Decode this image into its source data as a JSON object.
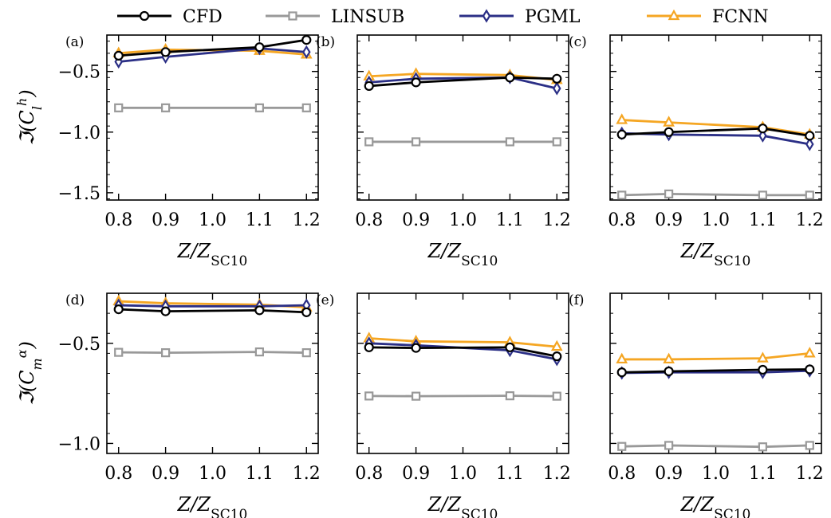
{
  "legend": [
    {
      "name": "CFD",
      "color": "#000000",
      "marker": "circle"
    },
    {
      "name": "LINSUB",
      "color": "#999999",
      "marker": "square"
    },
    {
      "name": "PGML",
      "color": "#2b2f86",
      "marker": "diamond"
    },
    {
      "name": "FCNN",
      "color": "#f5a623",
      "marker": "triangle"
    }
  ],
  "chart_data": [
    {
      "panel": "(a)",
      "type": "line",
      "x": [
        0.8,
        0.9,
        1.1,
        1.2
      ],
      "xlabel": "Z/Z_SC10",
      "ylabel": "ℑ(C_l^h)",
      "xticks": [
        "0.8",
        "0.9",
        "1.0",
        "1.1",
        "1.2"
      ],
      "yticks": [
        "-0.5",
        "-1.0",
        "-1.5"
      ],
      "ylim": [
        -1.56,
        -0.2
      ],
      "series": [
        {
          "name": "CFD",
          "values": [
            -0.37,
            -0.34,
            -0.3,
            -0.24
          ]
        },
        {
          "name": "LINSUB",
          "values": [
            -0.8,
            -0.8,
            -0.8,
            -0.8
          ]
        },
        {
          "name": "PGML",
          "values": [
            -0.42,
            -0.38,
            -0.31,
            -0.34
          ]
        },
        {
          "name": "FCNN",
          "values": [
            -0.35,
            -0.32,
            -0.33,
            -0.36
          ]
        }
      ]
    },
    {
      "panel": "(b)",
      "type": "line",
      "x": [
        0.8,
        0.9,
        1.1,
        1.2
      ],
      "xlabel": "Z/Z_SC10",
      "ylabel": "",
      "xticks": [
        "0.8",
        "0.9",
        "1.0",
        "1.1",
        "1.2"
      ],
      "yticks": [],
      "ylim": [
        -1.56,
        -0.2
      ],
      "series": [
        {
          "name": "CFD",
          "values": [
            -0.62,
            -0.59,
            -0.55,
            -0.56
          ]
        },
        {
          "name": "LINSUB",
          "values": [
            -1.08,
            -1.08,
            -1.08,
            -1.08
          ]
        },
        {
          "name": "PGML",
          "values": [
            -0.59,
            -0.56,
            -0.55,
            -0.64
          ]
        },
        {
          "name": "FCNN",
          "values": [
            -0.54,
            -0.52,
            -0.53,
            -0.57
          ]
        }
      ]
    },
    {
      "panel": "(c)",
      "type": "line",
      "x": [
        0.8,
        0.9,
        1.1,
        1.2
      ],
      "xlabel": "Z/Z_SC10",
      "ylabel": "",
      "xticks": [
        "0.8",
        "0.9",
        "1.0",
        "1.1",
        "1.2"
      ],
      "yticks": [],
      "ylim": [
        -1.56,
        -0.2
      ],
      "series": [
        {
          "name": "CFD",
          "values": [
            -1.02,
            -1.0,
            -0.97,
            -1.03
          ]
        },
        {
          "name": "LINSUB",
          "values": [
            -1.52,
            -1.51,
            -1.52,
            -1.52
          ]
        },
        {
          "name": "PGML",
          "values": [
            -1.01,
            -1.02,
            -1.03,
            -1.1
          ]
        },
        {
          "name": "FCNN",
          "values": [
            -0.9,
            -0.92,
            -0.96,
            -1.02
          ]
        }
      ]
    },
    {
      "panel": "(d)",
      "type": "line",
      "x": [
        0.8,
        0.9,
        1.1,
        1.2
      ],
      "xlabel": "Z/Z_SC10",
      "ylabel": "ℑ(C_m^α)",
      "xticks": [
        "0.8",
        "0.9",
        "1.0",
        "1.1",
        "1.2"
      ],
      "yticks": [
        "-0.5",
        "-1.0"
      ],
      "ylim": [
        -1.05,
        -0.25
      ],
      "series": [
        {
          "name": "CFD",
          "values": [
            -0.33,
            -0.34,
            -0.335,
            -0.345
          ]
        },
        {
          "name": "LINSUB",
          "values": [
            -0.545,
            -0.547,
            -0.543,
            -0.547
          ]
        },
        {
          "name": "PGML",
          "values": [
            -0.31,
            -0.315,
            -0.315,
            -0.31
          ]
        },
        {
          "name": "FCNN",
          "values": [
            -0.29,
            -0.3,
            -0.307,
            -0.32
          ]
        }
      ]
    },
    {
      "panel": "(e)",
      "type": "line",
      "x": [
        0.8,
        0.9,
        1.1,
        1.2
      ],
      "xlabel": "Z/Z_SC10",
      "ylabel": "",
      "xticks": [
        "0.8",
        "0.9",
        "1.0",
        "1.1",
        "1.2"
      ],
      "yticks": [],
      "ylim": [
        -1.05,
        -0.25
      ],
      "series": [
        {
          "name": "CFD",
          "values": [
            -0.52,
            -0.523,
            -0.52,
            -0.565
          ]
        },
        {
          "name": "LINSUB",
          "values": [
            -0.763,
            -0.764,
            -0.762,
            -0.764
          ]
        },
        {
          "name": "PGML",
          "values": [
            -0.5,
            -0.51,
            -0.535,
            -0.58
          ]
        },
        {
          "name": "FCNN",
          "values": [
            -0.475,
            -0.49,
            -0.495,
            -0.517
          ]
        }
      ]
    },
    {
      "panel": "(f)",
      "type": "line",
      "x": [
        0.8,
        0.9,
        1.1,
        1.2
      ],
      "xlabel": "Z/Z_SC10",
      "ylabel": "",
      "xticks": [
        "0.8",
        "0.9",
        "1.0",
        "1.1",
        "1.2"
      ],
      "yticks": [],
      "ylim": [
        -1.05,
        -0.25
      ],
      "series": [
        {
          "name": "CFD",
          "values": [
            -0.645,
            -0.64,
            -0.632,
            -0.63
          ]
        },
        {
          "name": "LINSUB",
          "values": [
            -1.015,
            -1.01,
            -1.017,
            -1.01
          ]
        },
        {
          "name": "PGML",
          "values": [
            -0.648,
            -0.645,
            -0.645,
            -0.637
          ]
        },
        {
          "name": "FCNN",
          "values": [
            -0.58,
            -0.58,
            -0.575,
            -0.55
          ]
        }
      ]
    }
  ]
}
